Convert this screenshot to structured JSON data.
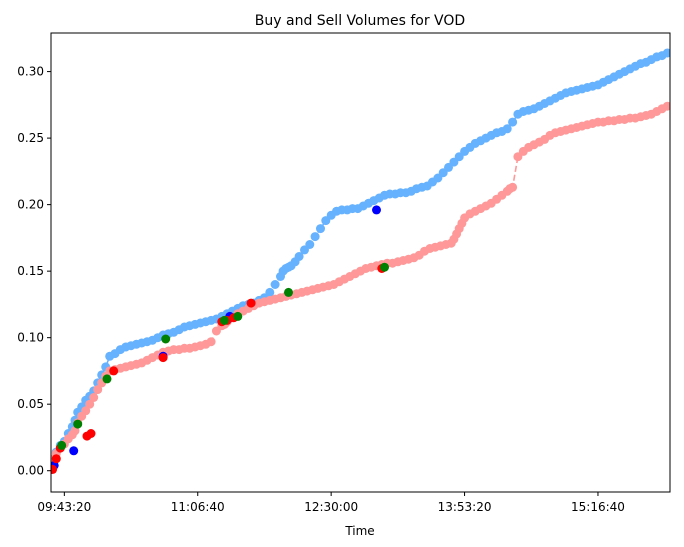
{
  "chart_data": {
    "type": "line",
    "title": "Buy and Sell Volumes for VOD",
    "xlabel": "Time",
    "ylabel": "",
    "x_range_seconds": [
      34500,
      57700
    ],
    "xticks": [
      {
        "value": 35000,
        "label": "09:43:20"
      },
      {
        "value": 40000,
        "label": "11:06:40"
      },
      {
        "value": 45000,
        "label": "12:30:00"
      },
      {
        "value": 50000,
        "label": "13:53:20"
      },
      {
        "value": 55000,
        "label": "15:16:40"
      }
    ],
    "ylim": [
      -0.016,
      0.329
    ],
    "yticks": [
      0.0,
      0.05,
      0.1,
      0.15,
      0.2,
      0.25,
      0.3
    ],
    "ytick_labels": [
      "0.00",
      "0.05",
      "0.10",
      "0.15",
      "0.20",
      "0.25",
      "0.30"
    ],
    "grid": false,
    "series": [
      {
        "color": "#66b2ff",
        "line_style": "dashed",
        "x": [
          34500,
          34600,
          34700,
          34850,
          35000,
          35150,
          35300,
          35400,
          35500,
          35650,
          35800,
          35950,
          36100,
          36250,
          36400,
          36550,
          36700,
          36900,
          37100,
          37300,
          37500,
          37700,
          37900,
          38100,
          38300,
          38500,
          38700,
          38900,
          39100,
          39300,
          39500,
          39700,
          39900,
          40100,
          40300,
          40500,
          40700,
          40900,
          41100,
          41300,
          41500,
          41700,
          41900,
          42100,
          42300,
          42500,
          42700,
          42900,
          43100,
          43200,
          43300,
          43400,
          43500,
          43650,
          43800,
          44000,
          44200,
          44400,
          44600,
          44800,
          45000,
          45200,
          45400,
          45600,
          45800,
          46000,
          46200,
          46400,
          46600,
          46800,
          47000,
          47200,
          47400,
          47600,
          47800,
          48000,
          48200,
          48400,
          48600,
          48800,
          49000,
          49200,
          49400,
          49600,
          49800,
          50000,
          50200,
          50400,
          50600,
          50800,
          51000,
          51200,
          51400,
          51600,
          51800,
          52000,
          52200,
          52400,
          52600,
          52800,
          53000,
          53200,
          53400,
          53600,
          53800,
          54000,
          54200,
          54400,
          54600,
          54800,
          55000,
          55200,
          55400,
          55600,
          55800,
          56000,
          56200,
          56400,
          56600,
          56800,
          57000,
          57200,
          57400,
          57600
        ],
        "values": [
          0.003,
          0.008,
          0.014,
          0.019,
          0.022,
          0.028,
          0.033,
          0.038,
          0.044,
          0.048,
          0.053,
          0.056,
          0.06,
          0.066,
          0.072,
          0.078,
          0.086,
          0.088,
          0.091,
          0.093,
          0.094,
          0.095,
          0.096,
          0.097,
          0.098,
          0.1,
          0.102,
          0.103,
          0.104,
          0.106,
          0.108,
          0.109,
          0.11,
          0.111,
          0.112,
          0.113,
          0.114,
          0.116,
          0.118,
          0.12,
          0.122,
          0.124,
          0.125,
          0.126,
          0.128,
          0.13,
          0.134,
          0.14,
          0.146,
          0.15,
          0.152,
          0.153,
          0.154,
          0.157,
          0.161,
          0.166,
          0.17,
          0.176,
          0.182,
          0.188,
          0.192,
          0.195,
          0.196,
          0.196,
          0.197,
          0.197,
          0.199,
          0.201,
          0.203,
          0.205,
          0.207,
          0.208,
          0.208,
          0.209,
          0.209,
          0.21,
          0.212,
          0.213,
          0.214,
          0.217,
          0.22,
          0.224,
          0.228,
          0.232,
          0.236,
          0.24,
          0.243,
          0.246,
          0.248,
          0.25,
          0.252,
          0.254,
          0.255,
          0.257,
          0.262,
          0.268,
          0.27,
          0.271,
          0.272,
          0.274,
          0.276,
          0.278,
          0.28,
          0.282,
          0.284,
          0.285,
          0.286,
          0.287,
          0.288,
          0.289,
          0.29,
          0.292,
          0.294,
          0.296,
          0.298,
          0.3,
          0.302,
          0.304,
          0.306,
          0.307,
          0.309,
          0.311,
          0.312,
          0.314
        ]
      },
      {
        "color": "#ff9999",
        "line_style": "dashed",
        "x": [
          34500,
          34600,
          34700,
          34850,
          35000,
          35150,
          35300,
          35400,
          35500,
          35650,
          35800,
          35950,
          36100,
          36250,
          36400,
          36550,
          36700,
          36900,
          37100,
          37300,
          37500,
          37700,
          37900,
          38100,
          38300,
          38500,
          38700,
          38900,
          39100,
          39300,
          39500,
          39700,
          39900,
          40100,
          40300,
          40500,
          40700,
          40900,
          41000,
          41050,
          41100,
          41300,
          41500,
          41700,
          41900,
          42100,
          42300,
          42500,
          42700,
          42900,
          43100,
          43300,
          43500,
          43700,
          43900,
          44100,
          44300,
          44500,
          44700,
          44900,
          45100,
          45300,
          45500,
          45700,
          45900,
          46100,
          46300,
          46500,
          46700,
          46900,
          47100,
          47300,
          47500,
          47700,
          47900,
          48100,
          48300,
          48500,
          48700,
          48900,
          49100,
          49300,
          49500,
          49600,
          49700,
          49800,
          49900,
          50000,
          50200,
          50400,
          50600,
          50800,
          51000,
          51200,
          51400,
          51600,
          51700,
          51800,
          52000,
          52200,
          52400,
          52600,
          52800,
          53000,
          53200,
          53400,
          53600,
          53800,
          54000,
          54200,
          54400,
          54600,
          54800,
          55000,
          55200,
          55400,
          55600,
          55800,
          56000,
          56200,
          56400,
          56600,
          56800,
          57000,
          57200,
          57400,
          57600
        ],
        "values": [
          0.005,
          0.009,
          0.013,
          0.017,
          0.02,
          0.024,
          0.027,
          0.03,
          0.036,
          0.041,
          0.045,
          0.05,
          0.055,
          0.061,
          0.066,
          0.071,
          0.075,
          0.076,
          0.077,
          0.078,
          0.079,
          0.08,
          0.081,
          0.083,
          0.085,
          0.087,
          0.089,
          0.09,
          0.091,
          0.091,
          0.092,
          0.092,
          0.093,
          0.094,
          0.095,
          0.097,
          0.105,
          0.109,
          0.11,
          0.111,
          0.112,
          0.115,
          0.118,
          0.12,
          0.122,
          0.124,
          0.126,
          0.127,
          0.128,
          0.129,
          0.13,
          0.131,
          0.132,
          0.133,
          0.134,
          0.135,
          0.136,
          0.137,
          0.138,
          0.139,
          0.14,
          0.142,
          0.144,
          0.146,
          0.148,
          0.15,
          0.152,
          0.153,
          0.154,
          0.155,
          0.156,
          0.156,
          0.157,
          0.158,
          0.159,
          0.16,
          0.162,
          0.165,
          0.167,
          0.168,
          0.169,
          0.17,
          0.171,
          0.174,
          0.178,
          0.182,
          0.186,
          0.19,
          0.193,
          0.195,
          0.197,
          0.199,
          0.201,
          0.204,
          0.207,
          0.21,
          0.212,
          0.213,
          0.236,
          0.24,
          0.243,
          0.245,
          0.247,
          0.249,
          0.252,
          0.254,
          0.255,
          0.256,
          0.257,
          0.258,
          0.259,
          0.26,
          0.261,
          0.262,
          0.262,
          0.263,
          0.263,
          0.264,
          0.264,
          0.265,
          0.265,
          0.266,
          0.267,
          0.268,
          0.27,
          0.272,
          0.274
        ]
      }
    ],
    "markers": [
      {
        "color": "#0000ff",
        "x": [
          34520,
          34620,
          35350,
          38700,
          41150,
          41200,
          46700
        ],
        "values": [
          0.001,
          0.004,
          0.015,
          0.086,
          0.114,
          0.116,
          0.196
        ]
      },
      {
        "color": "#ff0000",
        "x": [
          34560,
          34700,
          34850,
          35850,
          36000,
          36850,
          38700,
          40900,
          41100,
          41350,
          42000,
          46900
        ],
        "values": [
          0.001,
          0.009,
          0.017,
          0.026,
          0.028,
          0.075,
          0.085,
          0.112,
          0.113,
          0.115,
          0.126,
          0.152
        ]
      },
      {
        "color": "#008000",
        "x": [
          34900,
          35500,
          36600,
          38800,
          41000,
          41500,
          43400,
          47000
        ],
        "values": [
          0.019,
          0.035,
          0.069,
          0.099,
          0.113,
          0.116,
          0.134,
          0.153
        ]
      }
    ]
  }
}
